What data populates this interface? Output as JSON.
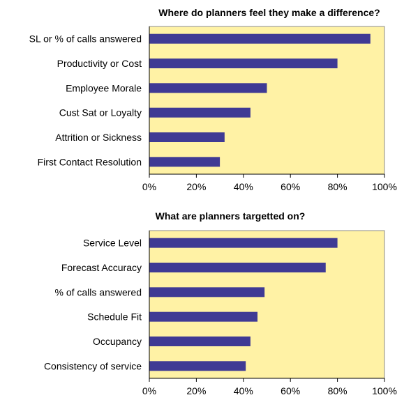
{
  "colors": {
    "plot_background": "#FFF2A5",
    "bar": "#3F3A94",
    "frame": "#8C8C8C"
  },
  "chart_data": [
    {
      "type": "bar",
      "orientation": "horizontal",
      "title": "Where do planners feel they make a difference?",
      "categories": [
        "SL or % of calls answered",
        "Productivity or Cost",
        "Employee Morale",
        "Cust Sat or Loyalty",
        "Attrition or Sickness",
        "First Contact Resolution"
      ],
      "values": [
        94,
        80,
        50,
        43,
        32,
        30
      ],
      "unit": "%",
      "xlim": [
        0,
        100
      ],
      "xticks": [
        "0%",
        "20%",
        "40%",
        "60%",
        "80%",
        "100%"
      ],
      "grid": false,
      "legend": false
    },
    {
      "type": "bar",
      "orientation": "horizontal",
      "title": "What are planners targetted on?",
      "categories": [
        "Service Level",
        "Forecast Accuracy",
        "% of calls answered",
        "Schedule Fit",
        "Occupancy",
        "Consistency of service"
      ],
      "values": [
        80,
        75,
        49,
        46,
        43,
        41
      ],
      "unit": "%",
      "xlim": [
        0,
        100
      ],
      "xticks": [
        "0%",
        "20%",
        "40%",
        "60%",
        "80%",
        "100%"
      ],
      "grid": false,
      "legend": false
    }
  ]
}
